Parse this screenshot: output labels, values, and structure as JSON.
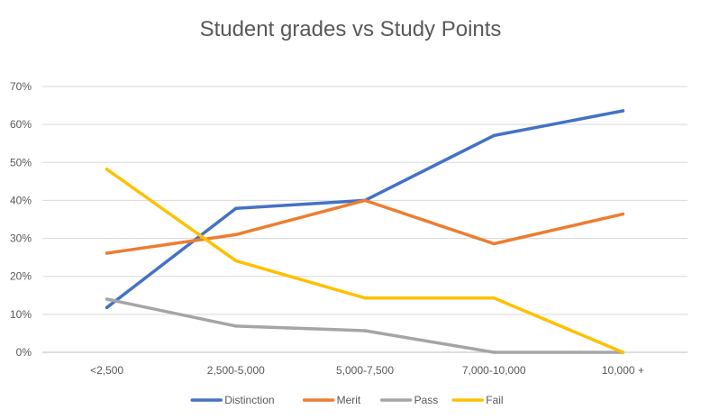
{
  "chart_data": {
    "type": "line",
    "title": "Student grades vs Study Points",
    "xlabel": "",
    "ylabel": "",
    "categories": [
      "<2,500",
      "2,500-5,000",
      "5,000-7,500",
      "7,000-10,000",
      "10,000 +"
    ],
    "ylim": [
      0,
      70
    ],
    "yticks": [
      0,
      10,
      20,
      30,
      40,
      50,
      60,
      70
    ],
    "ytick_labels": [
      "0%",
      "10%",
      "20%",
      "30%",
      "40%",
      "50%",
      "60%",
      "70%"
    ],
    "grid": true,
    "legend_position": "bottom",
    "series": [
      {
        "name": "Distinction",
        "color": "#4472C4",
        "values": [
          11.8,
          37.9,
          40.0,
          57.1,
          63.6
        ]
      },
      {
        "name": "Merit",
        "color": "#ED7D31",
        "values": [
          26.1,
          31.0,
          40.0,
          28.6,
          36.4
        ]
      },
      {
        "name": "Pass",
        "color": "#A5A5A5",
        "values": [
          14.0,
          6.9,
          5.7,
          0.0,
          0.0
        ]
      },
      {
        "name": "Fail",
        "color": "#FFC000",
        "values": [
          48.2,
          24.1,
          14.3,
          14.3,
          0.0
        ]
      }
    ]
  }
}
